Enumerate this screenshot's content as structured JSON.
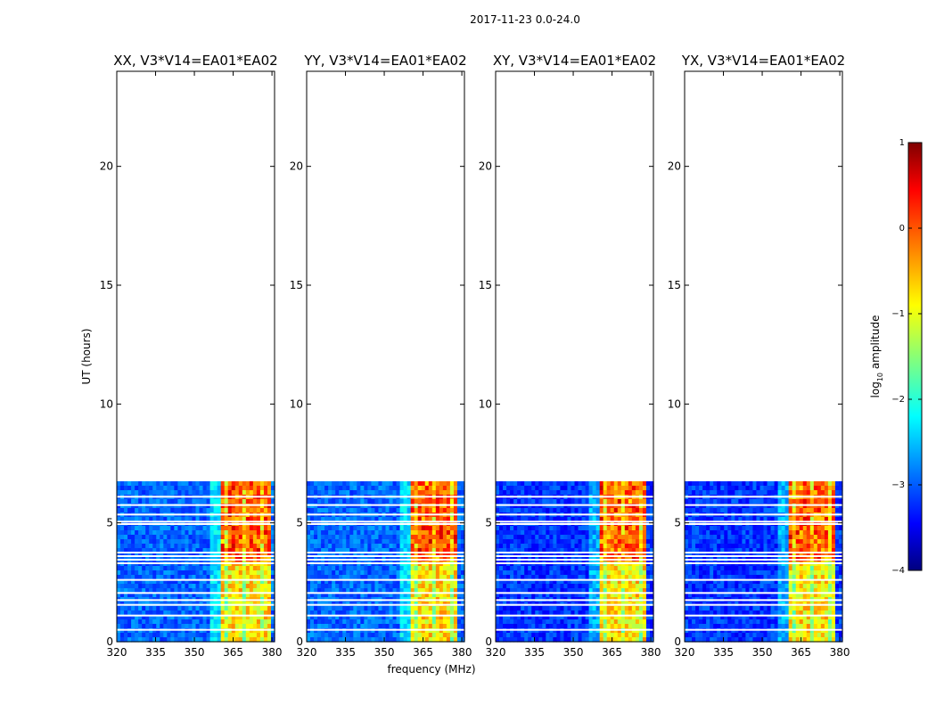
{
  "chart_data": {
    "type": "heatmap",
    "suptitle": "2017-11-23 0.0-24.0",
    "xlabel": "frequency (MHz)",
    "ylabel": "UT (hours)",
    "xlim": [
      320,
      381
    ],
    "ylim": [
      0,
      24
    ],
    "xticks": [
      320,
      335,
      350,
      365,
      380
    ],
    "yticks": [
      0,
      5,
      10,
      15,
      20
    ],
    "data_ut_range": [
      0,
      6.75
    ],
    "panels": [
      {
        "title": "XX, V3*V14=EA01*EA02",
        "strong_band_mhz": [
          360.5,
          380
        ],
        "high_band_ut": [
          0,
          3.3
        ]
      },
      {
        "title": "YY, V3*V14=EA01*EA02",
        "strong_band_mhz": [
          360.5,
          378
        ],
        "high_band_ut": [
          0,
          3.3
        ]
      },
      {
        "title": "XY, V3*V14=EA01*EA02",
        "strong_band_mhz": [
          360.5,
          378
        ],
        "high_band_ut": [
          0,
          3.3
        ]
      },
      {
        "title": "YX, V3*V14=EA01*EA02",
        "strong_band_mhz": [
          360.5,
          378
        ],
        "high_band_ut": [
          0,
          3.3
        ]
      }
    ],
    "flagged_ut_lines": [
      0.5,
      1.1,
      1.55,
      1.75,
      2.05,
      2.6,
      3.3,
      3.45,
      3.6,
      3.75,
      4.95,
      5.05,
      5.35,
      5.75,
      6.1
    ],
    "colorbar": {
      "label_prefix": "log",
      "label_sub": "10",
      "label_suffix": " amplitude",
      "ticks": [
        -4,
        -3,
        -2,
        -1,
        0,
        1
      ],
      "range": [
        -4,
        1
      ],
      "colormap": "jet"
    }
  }
}
